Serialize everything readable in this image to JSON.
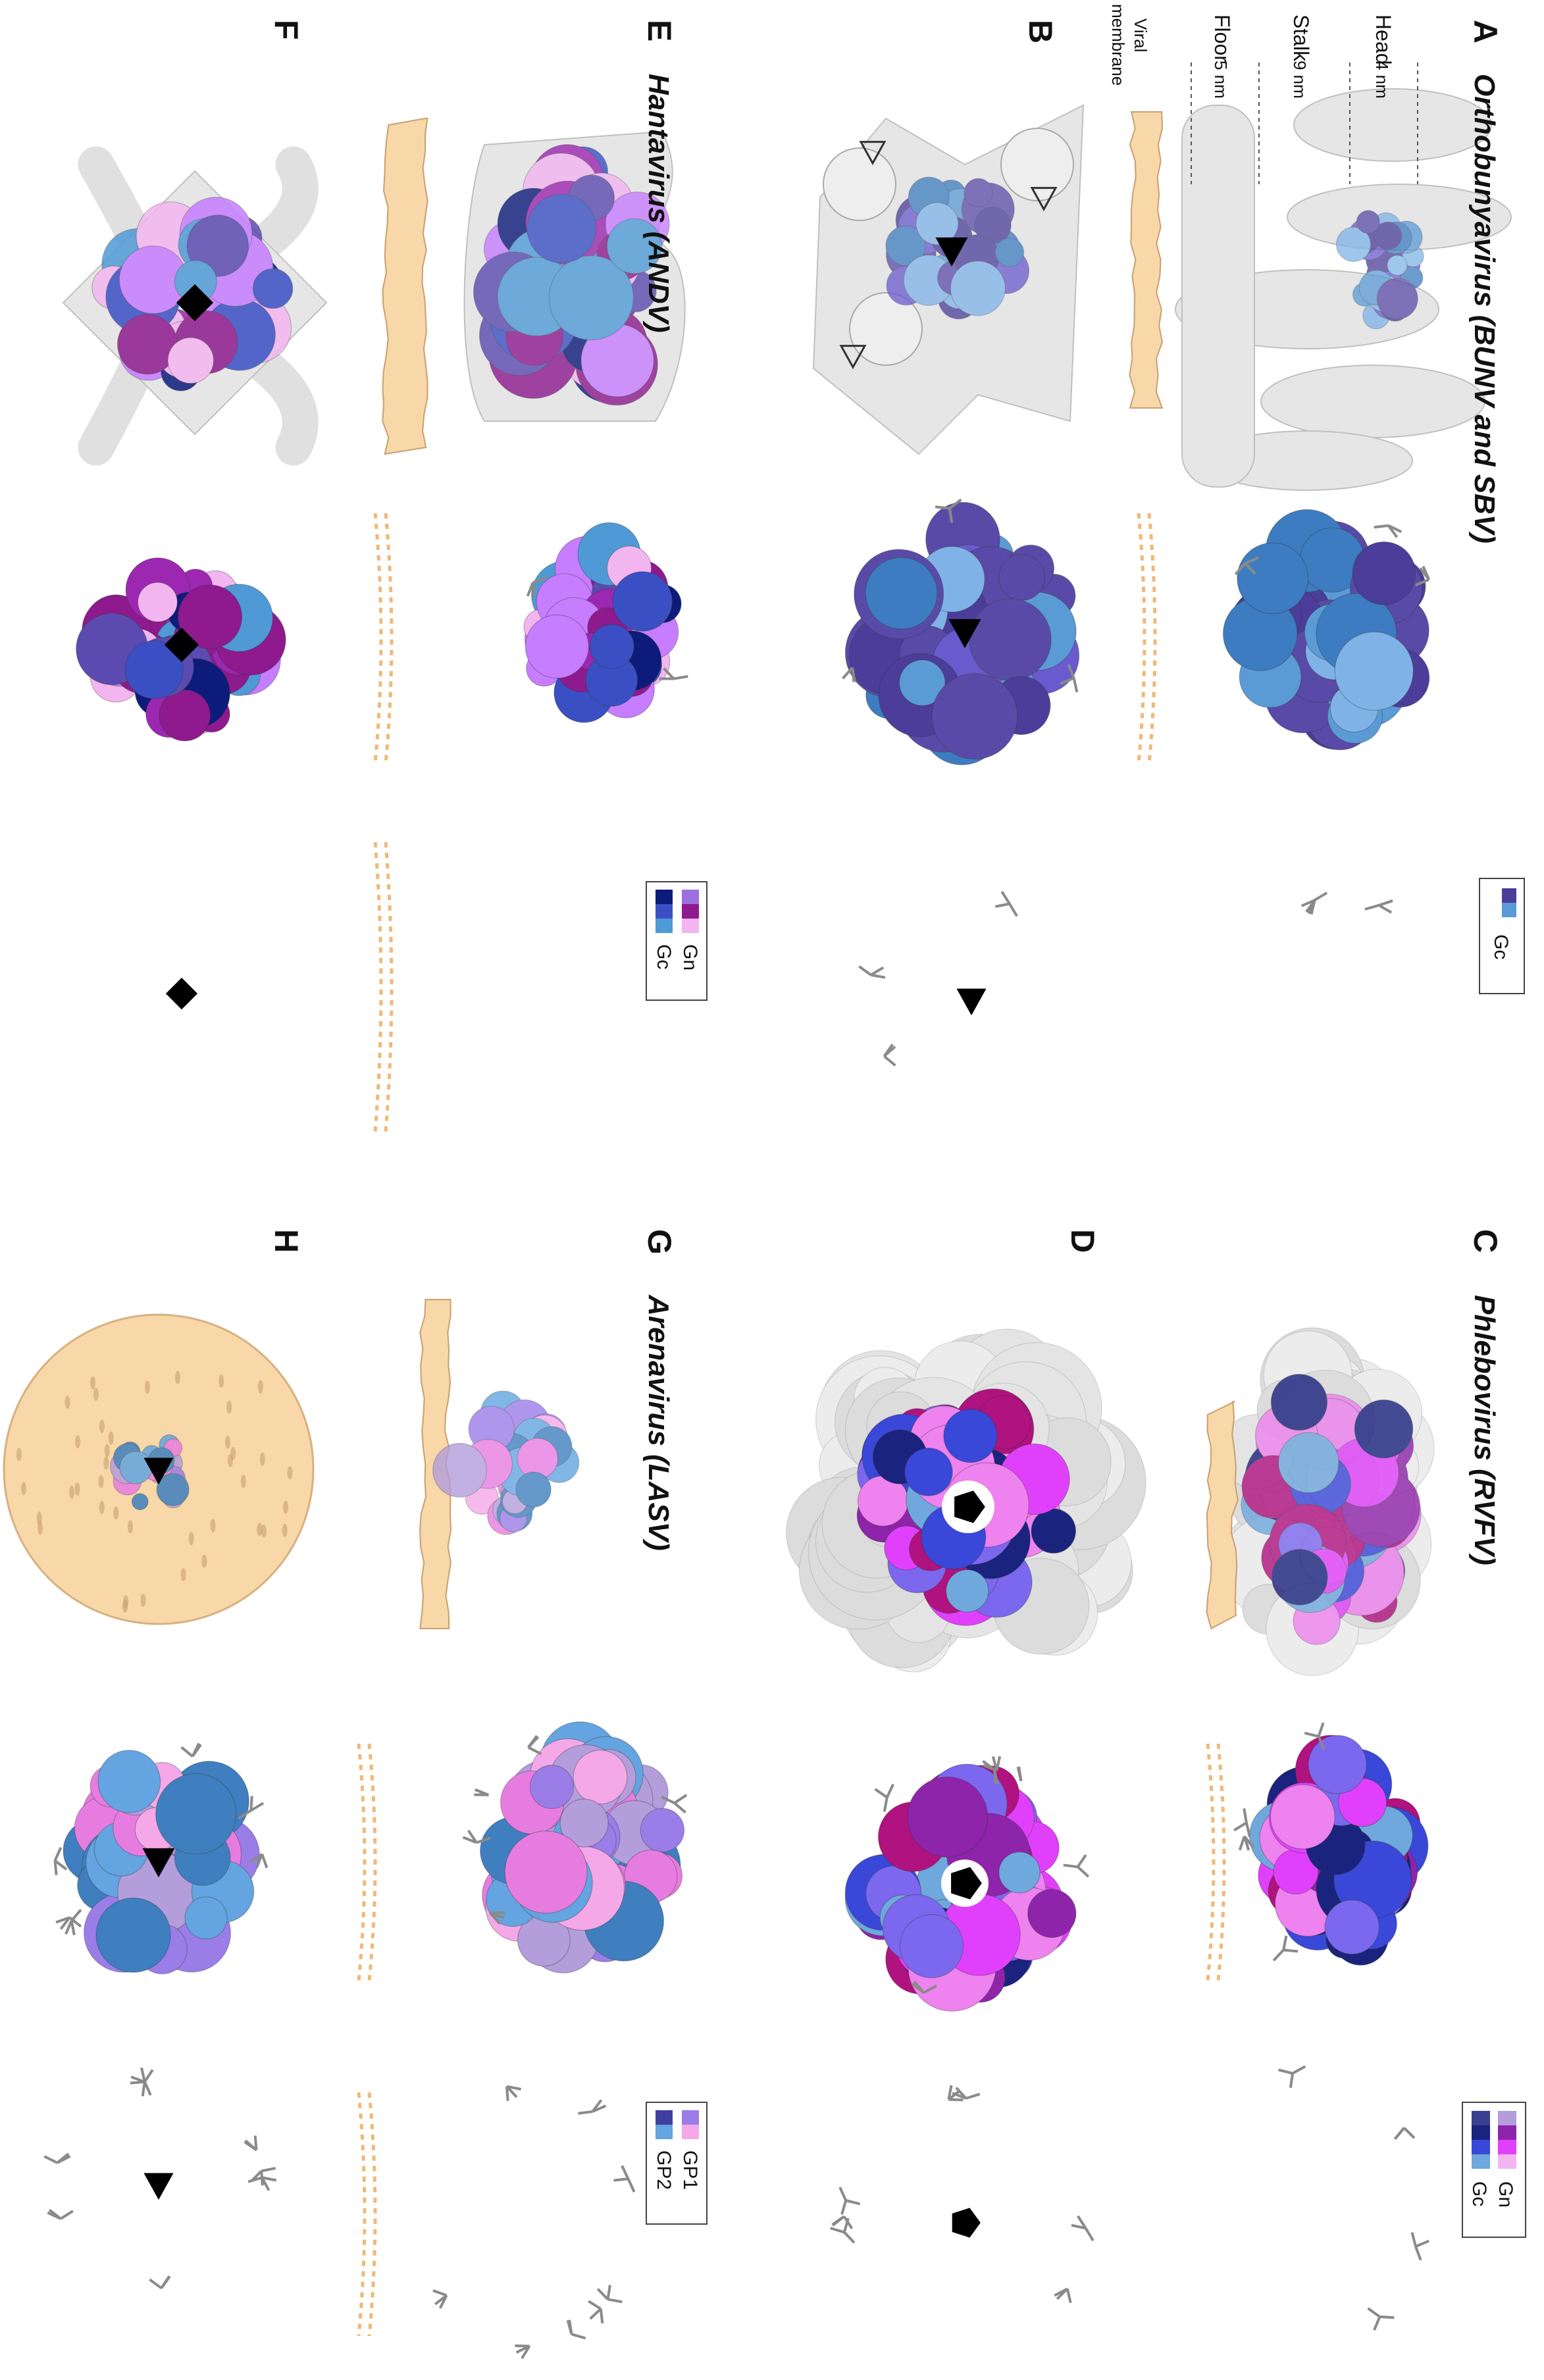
{
  "panels": [
    {
      "label": "A",
      "title": "Orthobunyavirus (BUNV and SBV)"
    },
    {
      "label": "B"
    },
    {
      "label": "C",
      "title": "Phlebovirus (RVFV)"
    },
    {
      "label": "D"
    },
    {
      "label": "E",
      "title": "Hantavirus (ANDV)"
    },
    {
      "label": "F"
    },
    {
      "label": "G",
      "title": "Arenavirus (LASV)"
    },
    {
      "label": "H"
    }
  ],
  "annotations": {
    "head": "Head",
    "head_size": "4 nm",
    "stalk": "Stalk",
    "stalk_size": "9 nm",
    "floor": "Floor",
    "floor_size": "5 nm",
    "viral_membrane": [
      "Viral",
      "membrane"
    ]
  },
  "legends": [
    {
      "panel": "A",
      "items": [
        "Gc"
      ]
    },
    {
      "panel": "C",
      "items": [
        "Gn",
        "Gc"
      ]
    },
    {
      "panel": "E",
      "items": [
        "Gn",
        "Gc"
      ]
    },
    {
      "panel": "G",
      "items": [
        "GP1",
        "GP2"
      ]
    }
  ]
}
